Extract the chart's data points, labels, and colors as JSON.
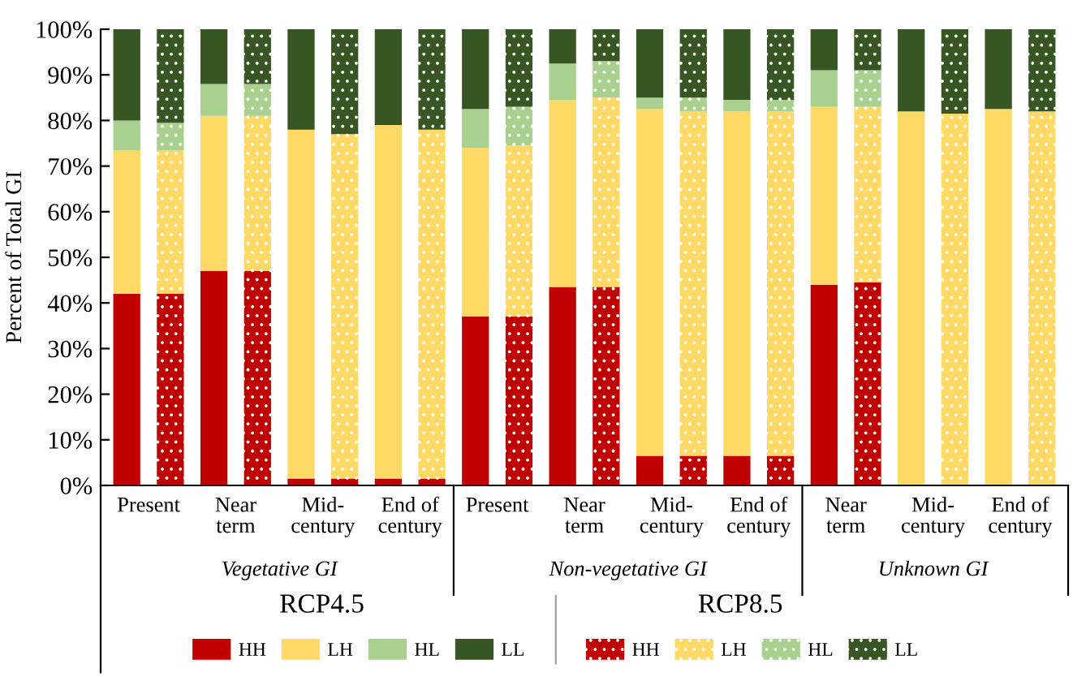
{
  "chart_data": {
    "type": "bar",
    "stacked": true,
    "ylabel": "Percent of Total GI",
    "categories": [
      "Present",
      null,
      "Near\nterm",
      null,
      "Mid-\ncentury",
      null,
      "End of\ncentury",
      null,
      "Present",
      null,
      "Near\nterm",
      null,
      "Mid-\ncentury",
      null,
      "End of\ncentury",
      null,
      "Near\nterm",
      null,
      "Mid-\ncentury",
      null,
      "End of\ncentury",
      null
    ],
    "series": [
      {
        "name": "HH",
        "color": "#c00000",
        "values": [
          42,
          null,
          47,
          null,
          1.5,
          null,
          1.5,
          null,
          37,
          null,
          43.5,
          null,
          6.5,
          null,
          6.5,
          null,
          44,
          null,
          0,
          null,
          0,
          null
        ]
      },
      {
        "name": "LH",
        "color": "#ffd966",
        "values": [
          31.5,
          null,
          34,
          null,
          76.5,
          null,
          77.5,
          null,
          37,
          null,
          41,
          null,
          76,
          null,
          75.5,
          null,
          39,
          null,
          82,
          null,
          82.5,
          null
        ]
      },
      {
        "name": "HL",
        "color": "#a9d08e",
        "values": [
          6.5,
          null,
          7,
          null,
          0,
          null,
          0,
          null,
          8.5,
          null,
          8,
          null,
          2.5,
          null,
          2.5,
          null,
          8,
          null,
          0,
          null,
          0,
          null
        ]
      },
      {
        "name": "LL",
        "color": "#375623",
        "values": [
          20,
          null,
          12,
          null,
          22,
          null,
          21,
          null,
          17.5,
          null,
          7.5,
          null,
          15,
          null,
          15.5,
          null,
          9,
          null,
          18,
          null,
          17.5,
          null
        ]
      },
      {
        "name": "HH",
        "color": "#c00000",
        "values": [
          null,
          42,
          null,
          47,
          null,
          1.5,
          null,
          1.5,
          null,
          37,
          null,
          43.5,
          null,
          6.5,
          null,
          6.5,
          null,
          44.5,
          null,
          0,
          null,
          0
        ]
      },
      {
        "name": "LH",
        "color": "#ffd966",
        "values": [
          null,
          31.5,
          null,
          34,
          null,
          75.5,
          null,
          76.5,
          null,
          37.5,
          null,
          41.5,
          null,
          75.5,
          null,
          75.5,
          null,
          38.5,
          null,
          81.5,
          null,
          82
        ]
      },
      {
        "name": "HL",
        "color": "#a9d08e",
        "values": [
          null,
          6,
          null,
          7,
          null,
          0,
          null,
          0,
          null,
          8.5,
          null,
          8,
          null,
          3,
          null,
          2.5,
          null,
          8,
          null,
          0,
          null,
          0
        ]
      },
      {
        "name": "LL",
        "color": "#375623",
        "values": [
          null,
          20.5,
          null,
          12,
          null,
          23,
          null,
          22,
          null,
          17,
          null,
          7,
          null,
          15,
          null,
          15.5,
          null,
          9,
          null,
          18.5,
          null,
          18
        ]
      }
    ],
    "ylim": [
      0,
      100
    ],
    "yticks": [
      {
        "value": 0,
        "label": "0%"
      },
      {
        "value": 10,
        "label": "10%"
      },
      {
        "value": 20,
        "label": "20%"
      },
      {
        "value": 30,
        "label": "30%"
      },
      {
        "value": 40,
        "label": "40%"
      },
      {
        "value": 50,
        "label": "50%"
      },
      {
        "value": 60,
        "label": "60%"
      },
      {
        "value": 70,
        "label": "70%"
      },
      {
        "value": 80,
        "label": "80%"
      },
      {
        "value": 90,
        "label": "90%"
      },
      {
        "value": 100,
        "label": "100%"
      }
    ],
    "annotations": [
      "Vegetative GI",
      "Non-vegetative GI",
      "Unknown GI",
      "RCP4.5",
      "RCP8.5"
    ],
    "grid": false,
    "legend": "bottom"
  }
}
